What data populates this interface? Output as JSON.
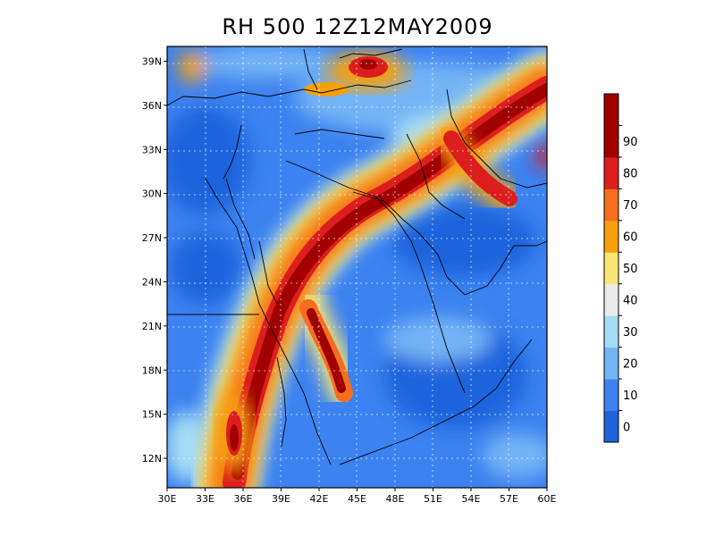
{
  "title": "RH 500  12Z12MAY2009",
  "map": {
    "field": "relative humidity",
    "level": "500",
    "lon_range": [
      30,
      60
    ],
    "lat_range": [
      10,
      40
    ],
    "lon_ticks": [
      "30E",
      "33E",
      "36E",
      "39E",
      "42E",
      "45E",
      "48E",
      "51E",
      "54E",
      "57E",
      "60E"
    ],
    "lat_ticks": [
      "12N",
      "15N",
      "18N",
      "21N",
      "24N",
      "27N",
      "30N",
      "33N",
      "36N",
      "39N"
    ],
    "grid": "dotted"
  },
  "colorbar": {
    "orientation": "vertical",
    "levels": [
      {
        "label": "0",
        "color": "#1e64dc"
      },
      {
        "label": "10",
        "color": "#3c82f0"
      },
      {
        "label": "20",
        "color": "#73b4f5"
      },
      {
        "label": "30",
        "color": "#a5dcf5"
      },
      {
        "label": "40",
        "color": "#eaeaea"
      },
      {
        "label": "50",
        "color": "#fae673"
      },
      {
        "label": "60",
        "color": "#f5a00a"
      },
      {
        "label": "70",
        "color": "#f56e1e"
      },
      {
        "label": "80",
        "color": "#dc1e1e"
      },
      {
        "label": "90",
        "color": "#a00000"
      }
    ],
    "top_color": "#a00000"
  }
}
